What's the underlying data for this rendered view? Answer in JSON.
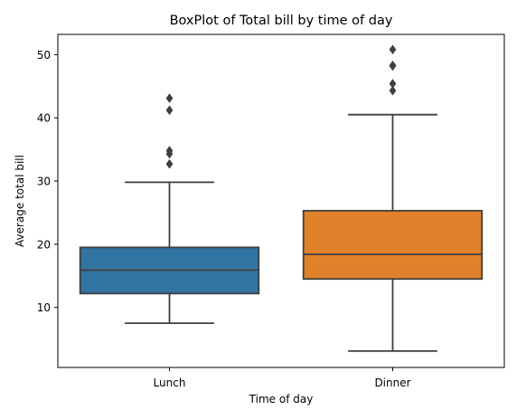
{
  "chart_data": {
    "type": "box",
    "title": "BoxPlot of Total bill by time of day",
    "xlabel": "Time of day",
    "ylabel": "Average total bill",
    "ylim": [
      0.5,
      53.2
    ],
    "yticks": [
      10,
      20,
      30,
      40,
      50
    ],
    "grid": false,
    "legend": "none",
    "categories": [
      "Lunch",
      "Dinner"
    ],
    "boxes": [
      {
        "category": "Lunch",
        "whisker_low": 7.5,
        "q1": 12.2,
        "median": 15.9,
        "q3": 19.5,
        "whisker_high": 29.8,
        "outliers": [
          32.7,
          34.3,
          34.8,
          41.2,
          43.1
        ],
        "color": "#3274a1"
      },
      {
        "category": "Dinner",
        "whisker_low": 3.1,
        "q1": 14.5,
        "median": 18.4,
        "q3": 25.3,
        "whisker_high": 40.5,
        "outliers": [
          44.3,
          45.4,
          48.2,
          48.3,
          50.8
        ],
        "color": "#e1812c"
      }
    ]
  }
}
